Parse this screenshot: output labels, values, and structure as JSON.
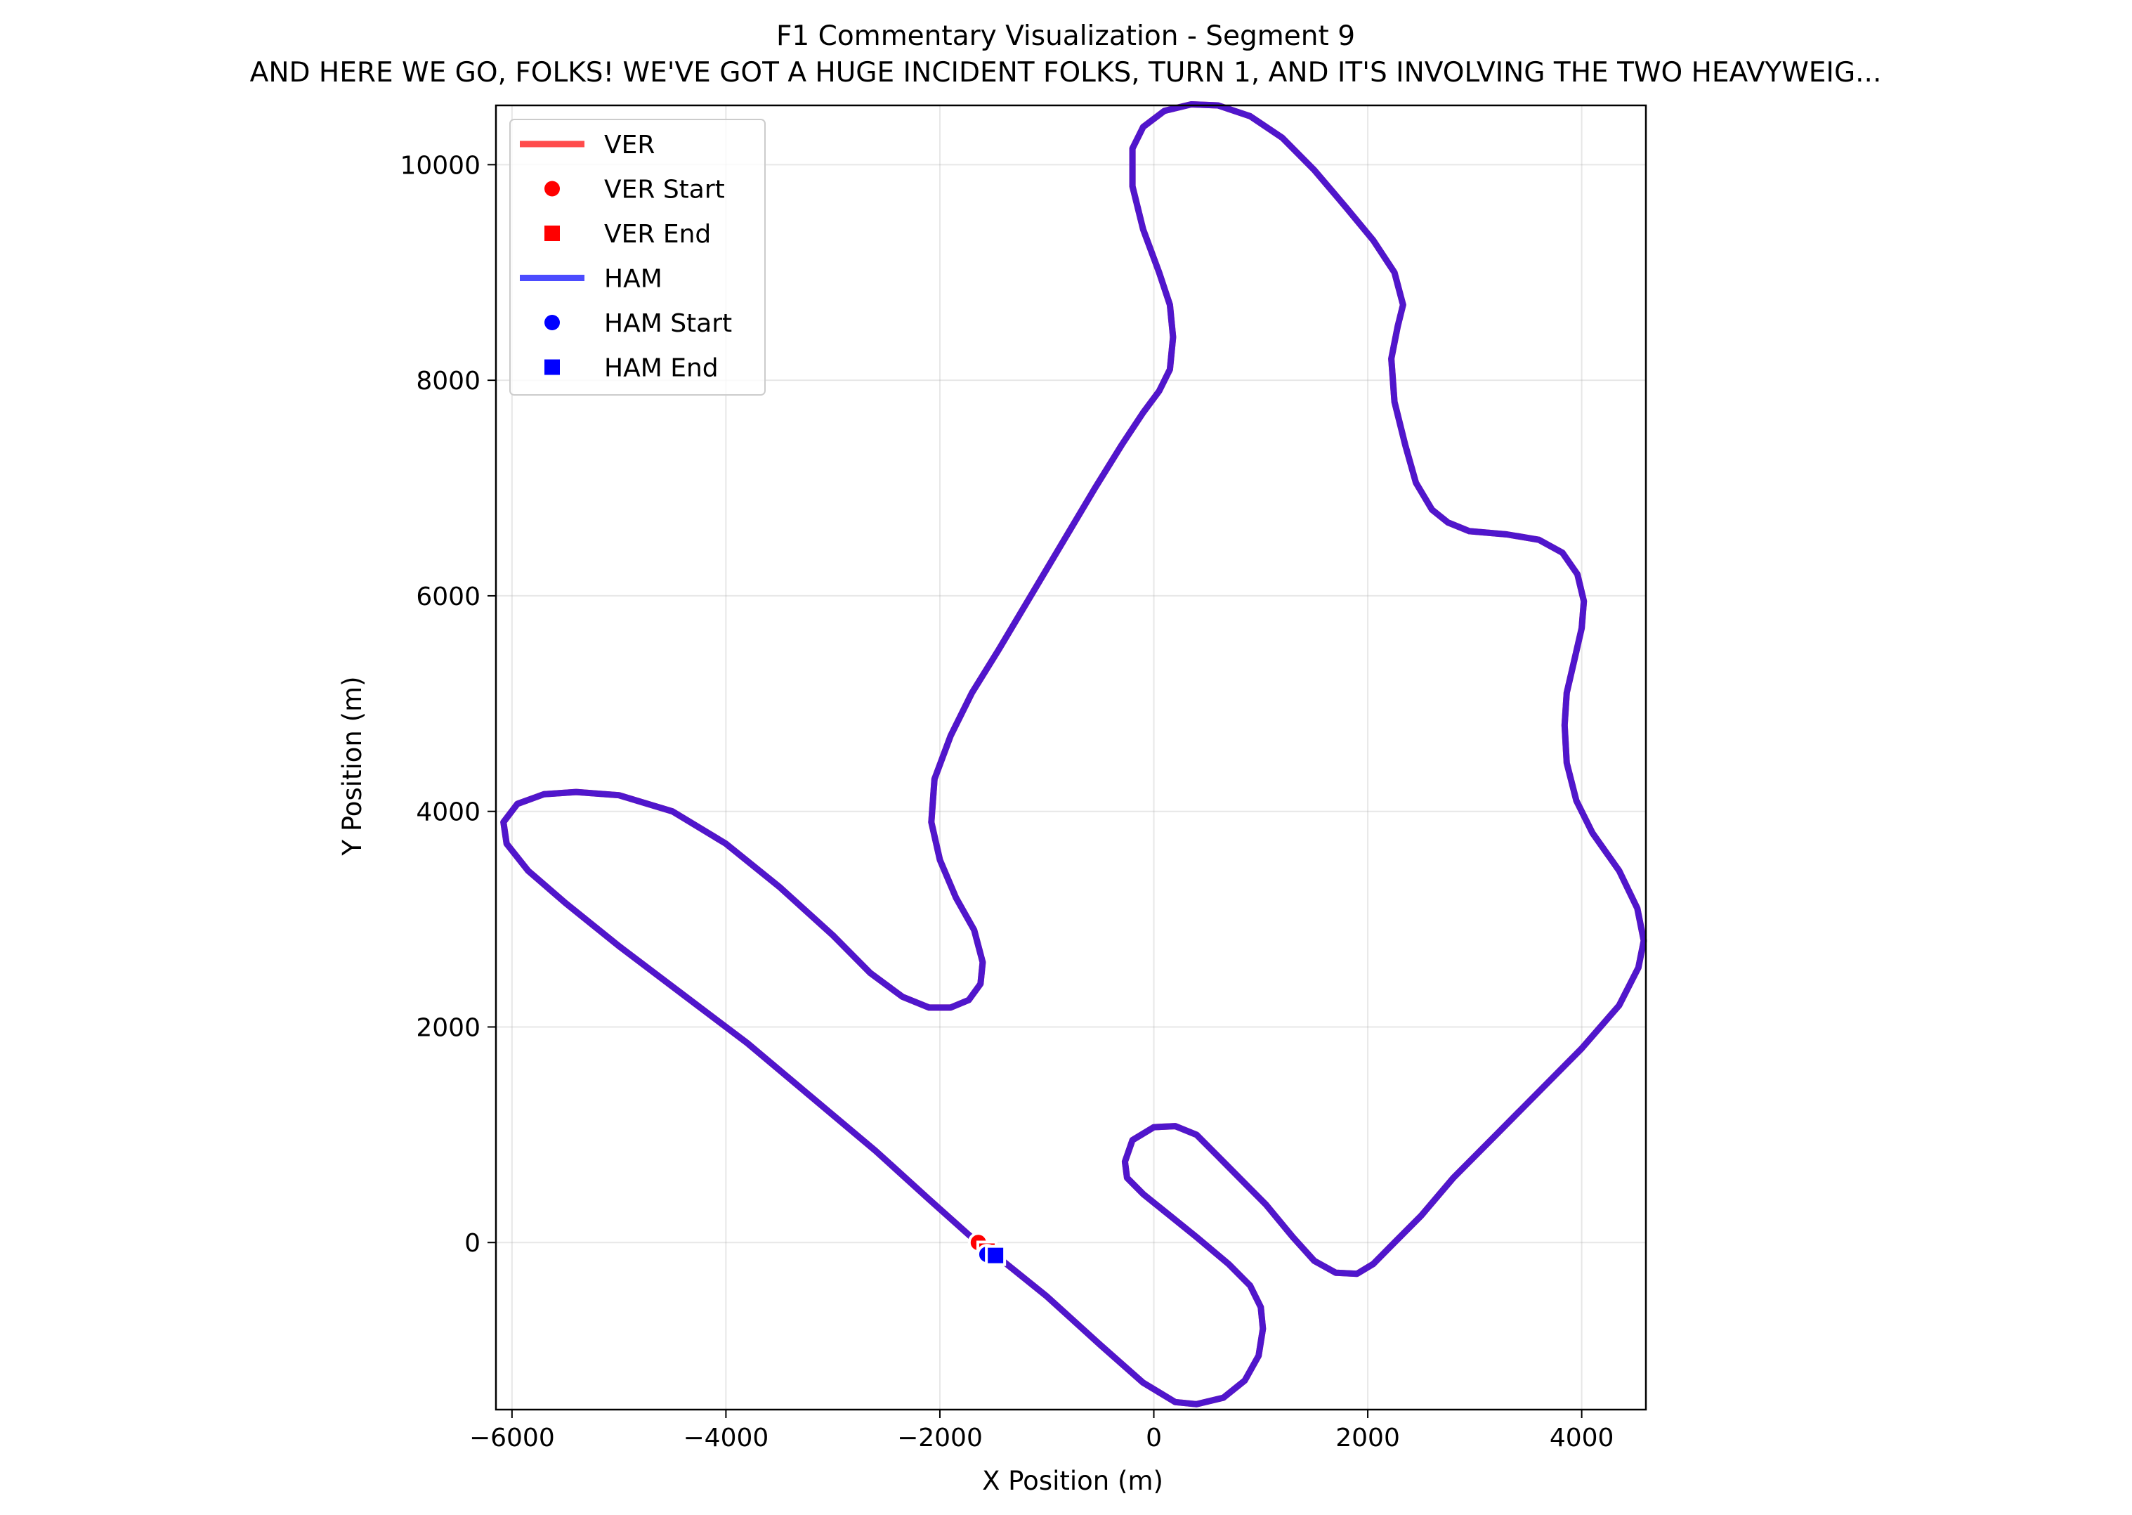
{
  "chart_data": {
    "type": "line",
    "title": "F1 Commentary Visualization - Segment 9",
    "subtitle": "AND HERE WE GO, FOLKS! WE'VE GOT A HUGE INCIDENT FOLKS, TURN 1, AND IT'S INVOLVING THE TWO HEAVYWEIG...",
    "xlabel": "X Position (m)",
    "ylabel": "Y Position (m)",
    "xlim": [
      -6150,
      4600
    ],
    "ylim": [
      -1550,
      10550
    ],
    "xticks": [
      -6000,
      -4000,
      -2000,
      0,
      2000,
      4000
    ],
    "yticks": [
      0,
      2000,
      4000,
      6000,
      8000,
      10000
    ],
    "xtick_labels": [
      "−6000",
      "−4000",
      "−2000",
      "0",
      "2000",
      "4000"
    ],
    "ytick_labels": [
      "0",
      "2000",
      "4000",
      "6000",
      "8000",
      "10000"
    ],
    "grid": true,
    "legend_position": "top-left",
    "legend": [
      {
        "label": "VER",
        "kind": "line",
        "color": "#ff4c4c"
      },
      {
        "label": "VER Start",
        "kind": "circle",
        "color": "#ff0000"
      },
      {
        "label": "VER End",
        "kind": "square",
        "color": "#ff0000"
      },
      {
        "label": "HAM",
        "kind": "line",
        "color": "#4c4cff"
      },
      {
        "label": "HAM Start",
        "kind": "circle",
        "color": "#0000ff"
      },
      {
        "label": "HAM End",
        "kind": "square",
        "color": "#0000ff"
      }
    ],
    "track": [
      [
        -1500,
        -100
      ],
      [
        -1000,
        -500
      ],
      [
        -500,
        -950
      ],
      [
        -100,
        -1300
      ],
      [
        200,
        -1480
      ],
      [
        400,
        -1500
      ],
      [
        650,
        -1440
      ],
      [
        850,
        -1280
      ],
      [
        980,
        -1050
      ],
      [
        1020,
        -800
      ],
      [
        1000,
        -600
      ],
      [
        900,
        -400
      ],
      [
        700,
        -200
      ],
      [
        400,
        50
      ],
      [
        150,
        250
      ],
      [
        -100,
        450
      ],
      [
        -250,
        600
      ],
      [
        -270,
        750
      ],
      [
        -200,
        950
      ],
      [
        0,
        1070
      ],
      [
        200,
        1080
      ],
      [
        400,
        1000
      ],
      [
        600,
        800
      ],
      [
        800,
        600
      ],
      [
        1050,
        350
      ],
      [
        1300,
        50
      ],
      [
        1500,
        -170
      ],
      [
        1700,
        -280
      ],
      [
        1900,
        -290
      ],
      [
        2050,
        -200
      ],
      [
        2250,
        0
      ],
      [
        2500,
        250
      ],
      [
        2800,
        600
      ],
      [
        3200,
        1000
      ],
      [
        3600,
        1400
      ],
      [
        4000,
        1800
      ],
      [
        4350,
        2200
      ],
      [
        4530,
        2550
      ],
      [
        4580,
        2800
      ],
      [
        4520,
        3100
      ],
      [
        4350,
        3450
      ],
      [
        4100,
        3800
      ],
      [
        3950,
        4100
      ],
      [
        3860,
        4450
      ],
      [
        3840,
        4800
      ],
      [
        3860,
        5100
      ],
      [
        3930,
        5400
      ],
      [
        4000,
        5700
      ],
      [
        4020,
        5950
      ],
      [
        3960,
        6200
      ],
      [
        3820,
        6400
      ],
      [
        3600,
        6520
      ],
      [
        3300,
        6570
      ],
      [
        2950,
        6600
      ],
      [
        2750,
        6680
      ],
      [
        2600,
        6800
      ],
      [
        2450,
        7050
      ],
      [
        2350,
        7400
      ],
      [
        2250,
        7800
      ],
      [
        2220,
        8200
      ],
      [
        2280,
        8500
      ],
      [
        2330,
        8700
      ],
      [
        2250,
        9000
      ],
      [
        2050,
        9300
      ],
      [
        1800,
        9600
      ],
      [
        1500,
        9950
      ],
      [
        1200,
        10250
      ],
      [
        900,
        10450
      ],
      [
        600,
        10550
      ],
      [
        350,
        10560
      ],
      [
        100,
        10500
      ],
      [
        -100,
        10350
      ],
      [
        -200,
        10150
      ],
      [
        -200,
        9800
      ],
      [
        -100,
        9400
      ],
      [
        50,
        9000
      ],
      [
        150,
        8700
      ],
      [
        180,
        8400
      ],
      [
        150,
        8100
      ],
      [
        50,
        7900
      ],
      [
        -100,
        7700
      ],
      [
        -300,
        7400
      ],
      [
        -550,
        7000
      ],
      [
        -850,
        6500
      ],
      [
        -1150,
        6000
      ],
      [
        -1450,
        5500
      ],
      [
        -1700,
        5100
      ],
      [
        -1900,
        4700
      ],
      [
        -2050,
        4300
      ],
      [
        -2080,
        3900
      ],
      [
        -2000,
        3550
      ],
      [
        -1850,
        3200
      ],
      [
        -1680,
        2900
      ],
      [
        -1600,
        2600
      ],
      [
        -1620,
        2400
      ],
      [
        -1730,
        2250
      ],
      [
        -1900,
        2180
      ],
      [
        -2100,
        2180
      ],
      [
        -2350,
        2280
      ],
      [
        -2650,
        2500
      ],
      [
        -3000,
        2850
      ],
      [
        -3500,
        3300
      ],
      [
        -4000,
        3700
      ],
      [
        -4500,
        4000
      ],
      [
        -5000,
        4150
      ],
      [
        -5400,
        4180
      ],
      [
        -5700,
        4160
      ],
      [
        -5950,
        4070
      ],
      [
        -6080,
        3900
      ],
      [
        -6050,
        3700
      ],
      [
        -5850,
        3450
      ],
      [
        -5500,
        3150
      ],
      [
        -5000,
        2750
      ],
      [
        -4400,
        2300
      ],
      [
        -3800,
        1850
      ],
      [
        -3200,
        1350
      ],
      [
        -2600,
        850
      ],
      [
        -2100,
        400
      ],
      [
        -1650,
        0
      ],
      [
        -1500,
        -100
      ]
    ],
    "series": [
      {
        "name": "VER",
        "color": "#ff4c4c",
        "start": [
          -1640,
          0
        ],
        "end": [
          -1560,
          -80
        ]
      },
      {
        "name": "HAM",
        "color": "#4c4cff",
        "start": [
          -1560,
          -110
        ],
        "end": [
          -1480,
          -120
        ]
      }
    ],
    "overlap_color": "#5016cc"
  }
}
